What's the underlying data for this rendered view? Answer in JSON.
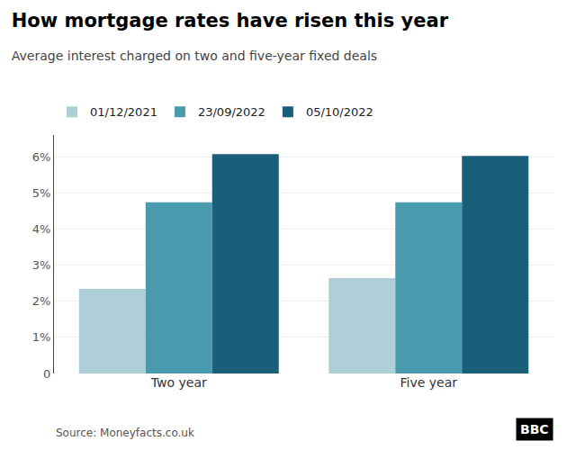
{
  "chart_data": {
    "type": "bar",
    "title": "How mortgage rates have risen this year",
    "subtitle": "Average interest charged on two and five-year fixed deals",
    "categories": [
      "Two year",
      "Five year"
    ],
    "series": [
      {
        "name": "01/12/2021",
        "color": "#aecfd8",
        "values": [
          2.34,
          2.64
        ]
      },
      {
        "name": "23/09/2022",
        "color": "#4a9aad",
        "values": [
          4.74,
          4.74
        ]
      },
      {
        "name": "05/10/2022",
        "color": "#1a5f7a",
        "values": [
          6.07,
          6.02
        ]
      }
    ],
    "ylim": [
      0,
      6.6
    ],
    "yticks": [
      0,
      {
        "value": 1,
        "label": "1%"
      },
      {
        "value": 2,
        "label": "2%"
      },
      {
        "value": 3,
        "label": "3%"
      },
      {
        "value": 4,
        "label": "4%"
      },
      {
        "value": 5,
        "label": "5%"
      },
      {
        "value": 6,
        "label": "6%"
      }
    ],
    "grid": true,
    "legend": "top",
    "annotations": [
      "Source: Moneyfacts.co.uk",
      "BBC"
    ]
  }
}
